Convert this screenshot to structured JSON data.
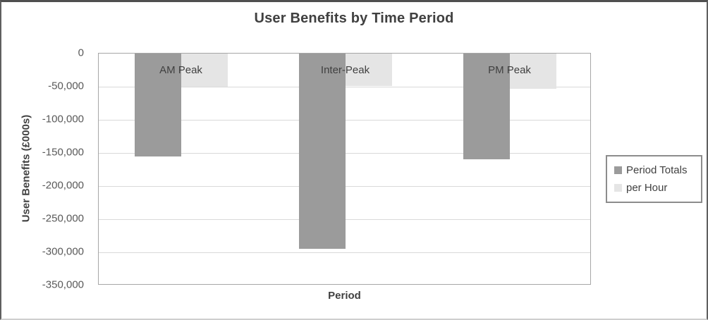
{
  "chart_data": {
    "type": "bar",
    "title": "User Benefits by Time Period",
    "xlabel": "Period",
    "ylabel": "User Benefits (£000s)",
    "categories": [
      "AM Peak",
      "Inter-Peak",
      "PM Peak"
    ],
    "series": [
      {
        "name": "Period Totals",
        "color": "#9b9b9b",
        "values": [
          -155000,
          -295000,
          -160000
        ]
      },
      {
        "name": "per Hour",
        "color": "#e5e5e5",
        "values": [
          -50000,
          -49000,
          -53000
        ]
      }
    ],
    "ylim": [
      -350000,
      0
    ],
    "ytick_step": 50000,
    "ytick_labels": [
      "0",
      "-50,000",
      "-100,000",
      "-150,000",
      "-200,000",
      "-250,000",
      "-300,000",
      "-350,000"
    ],
    "grid": true,
    "legend_position": "right",
    "colors": {
      "title_text": "#404040",
      "tick_text": "#595959",
      "gridline": "#d9d9d9",
      "plot_border": "#a6a6a6",
      "legend_border": "#8c8c8c"
    }
  }
}
